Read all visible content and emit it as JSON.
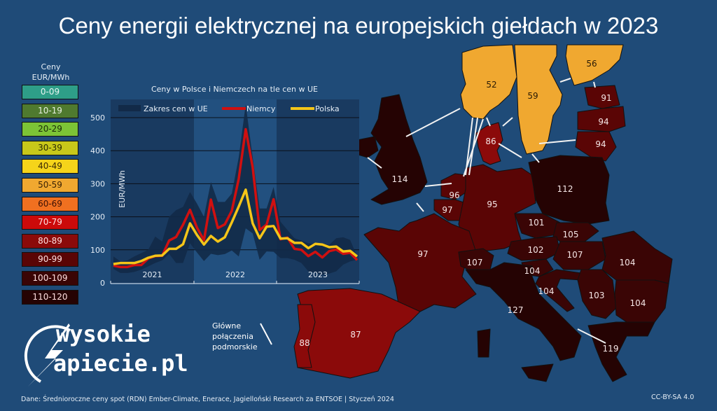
{
  "title": "Ceny energii elektrycznej na europejskich giełdach w 2023",
  "legend": {
    "heading_line1": "Ceny",
    "heading_line2": "EUR/MWh",
    "items": [
      {
        "label": "0-09",
        "color": "#2e9e88",
        "text": "#e8f4f0"
      },
      {
        "label": "10-19",
        "color": "#4f7a2f",
        "text": "#e8f0e0"
      },
      {
        "label": "20-29",
        "color": "#7cc436",
        "text": "#1a2a08"
      },
      {
        "label": "30-39",
        "color": "#c8c81a",
        "text": "#2a2a05"
      },
      {
        "label": "40-49",
        "color": "#f5d41a",
        "text": "#3a2a05"
      },
      {
        "label": "50-59",
        "color": "#f0a830",
        "text": "#3a2205"
      },
      {
        "label": "60-69",
        "color": "#f07020",
        "text": "#3a1005"
      },
      {
        "label": "70-79",
        "color": "#cc0a0a",
        "text": "#ffe0e0"
      },
      {
        "label": "80-89",
        "color": "#8b0a0a",
        "text": "#ffe0e0"
      },
      {
        "label": "90-99",
        "color": "#5a0505",
        "text": "#ffe0e0"
      },
      {
        "label": "100-109",
        "color": "#3a0505",
        "text": "#ffe0e0"
      },
      {
        "label": "110-120",
        "color": "#250303",
        "text": "#ffe0e0"
      }
    ]
  },
  "chart_data": {
    "type": "line",
    "title": "Ceny w Polsce i Niemczech na tle cen w UE",
    "ylabel": "EUR/MWh",
    "xlabel": "",
    "ylim": [
      0,
      550
    ],
    "yticks": [
      0,
      100,
      200,
      300,
      400,
      500
    ],
    "year_labels": [
      "2021",
      "2022",
      "2023"
    ],
    "x_unit": "month (Jan 2021 – Dec 2023)",
    "grid": true,
    "legend_position": "top",
    "range": {
      "name": "Zakres cen w UE",
      "color": "#122a48",
      "low": [
        42,
        30,
        30,
        33,
        40,
        50,
        60,
        68,
        88,
        60,
        60,
        120,
        92,
        66,
        88,
        84,
        87,
        98,
        80,
        165,
        150,
        70,
        95,
        94,
        75,
        75,
        70,
        60,
        35,
        30,
        25,
        28,
        35,
        55,
        65,
        70
      ],
      "high": [
        80,
        65,
        68,
        80,
        90,
        100,
        140,
        125,
        200,
        220,
        230,
        275,
        240,
        200,
        305,
        245,
        245,
        270,
        380,
        540,
        380,
        225,
        225,
        290,
        185,
        160,
        135,
        128,
        120,
        118,
        120,
        115,
        135,
        138,
        130,
        80
      ]
    },
    "series": [
      {
        "name": "Niemcy",
        "color": "#d01010",
        "values": [
          52,
          48,
          48,
          54,
          54,
          74,
          81,
          82,
          128,
          139,
          176,
          221,
          167,
          129,
          252,
          166,
          177,
          218,
          315,
          465,
          350,
          160,
          176,
          253,
          132,
          137,
          103,
          100,
          81,
          94,
          77,
          96,
          101,
          88,
          91,
          69
        ]
      },
      {
        "name": "Polska",
        "color": "#f5c518",
        "values": [
          57,
          60,
          60,
          60,
          66,
          76,
          82,
          83,
          103,
          103,
          117,
          180,
          145,
          116,
          142,
          125,
          138,
          183,
          231,
          282,
          180,
          135,
          170,
          172,
          134,
          135,
          121,
          121,
          105,
          118,
          116,
          108,
          110,
          95,
          97,
          80
        ]
      }
    ]
  },
  "map": {
    "countries": [
      {
        "id": "norway",
        "value": 52
      },
      {
        "id": "sweden",
        "value": 59
      },
      {
        "id": "finland",
        "value": 56
      },
      {
        "id": "estonia",
        "value": 91
      },
      {
        "id": "latvia",
        "value": 94
      },
      {
        "id": "lithuania",
        "value": 94
      },
      {
        "id": "denmark",
        "value": 86
      },
      {
        "id": "uk",
        "value": 114
      },
      {
        "id": "netherlands",
        "value": 96
      },
      {
        "id": "belgium",
        "value": 97
      },
      {
        "id": "germany",
        "value": 95
      },
      {
        "id": "poland",
        "value": 112
      },
      {
        "id": "czechia",
        "value": 101
      },
      {
        "id": "slovakia",
        "value": 105
      },
      {
        "id": "austria",
        "value": 102
      },
      {
        "id": "hungary",
        "value": 107
      },
      {
        "id": "romania",
        "value": 104
      },
      {
        "id": "france",
        "value": 97
      },
      {
        "id": "switzerland",
        "value": 107
      },
      {
        "id": "slovenia",
        "value": 104
      },
      {
        "id": "croatia",
        "value": 104
      },
      {
        "id": "serbia",
        "value": 103
      },
      {
        "id": "bulgaria",
        "value": 104
      },
      {
        "id": "italy",
        "value": 127
      },
      {
        "id": "greece",
        "value": 119
      },
      {
        "id": "spain",
        "value": 87
      },
      {
        "id": "portugal",
        "value": 88
      }
    ],
    "cable_legend": "Główne\npołączenia\npodmorskie"
  },
  "logo": {
    "line1": "wysokie",
    "line2": "apiecie.pl"
  },
  "footer": {
    "source": "Dane: Średnioroczne ceny spot (RDN) Ember-Climate, Enerace, Jagielloński Research za ENTSOE  |  Styczeń 2024",
    "license": "CC-BY-SA 4.0"
  }
}
